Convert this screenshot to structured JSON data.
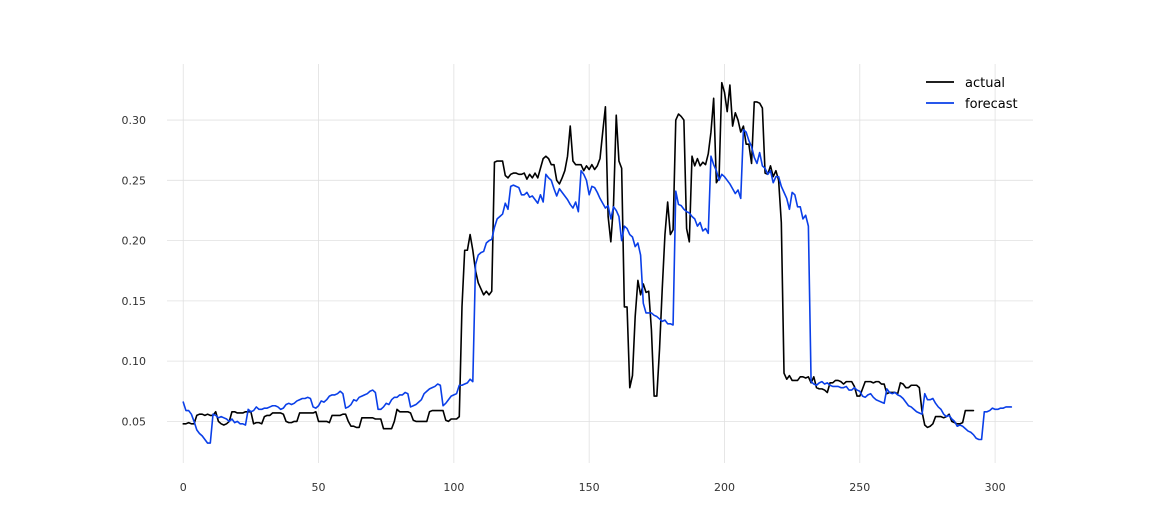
{
  "chart_data": {
    "type": "line",
    "title": "",
    "xlabel": "",
    "ylabel": "",
    "xlim": [
      -6,
      314
    ],
    "ylim": [
      0.0155,
      0.3465
    ],
    "x_ticks": [
      0,
      50,
      100,
      150,
      200,
      250,
      300
    ],
    "y_ticks": [
      0.05,
      0.1,
      0.15,
      0.2,
      0.25,
      0.3
    ],
    "grid": true,
    "legend_position": "top-right",
    "series": [
      {
        "name": "actual",
        "color": "#000000",
        "x_start": 0,
        "values": [
          0.048,
          0.048,
          0.049,
          0.048,
          0.048,
          0.055,
          0.056,
          0.056,
          0.055,
          0.056,
          0.055,
          0.055,
          0.058,
          0.05,
          0.048,
          0.047,
          0.048,
          0.05,
          0.058,
          0.058,
          0.057,
          0.057,
          0.057,
          0.058,
          0.058,
          0.058,
          0.048,
          0.049,
          0.049,
          0.048,
          0.054,
          0.055,
          0.055,
          0.057,
          0.057,
          0.057,
          0.057,
          0.056,
          0.05,
          0.049,
          0.049,
          0.05,
          0.05,
          0.057,
          0.057,
          0.057,
          0.057,
          0.057,
          0.057,
          0.058,
          0.05,
          0.05,
          0.05,
          0.05,
          0.049,
          0.055,
          0.055,
          0.055,
          0.055,
          0.056,
          0.056,
          0.05,
          0.046,
          0.046,
          0.045,
          0.045,
          0.053,
          0.053,
          0.053,
          0.053,
          0.053,
          0.052,
          0.052,
          0.052,
          0.044,
          0.044,
          0.044,
          0.044,
          0.05,
          0.06,
          0.058,
          0.058,
          0.058,
          0.058,
          0.057,
          0.051,
          0.05,
          0.05,
          0.05,
          0.05,
          0.05,
          0.058,
          0.059,
          0.059,
          0.059,
          0.059,
          0.059,
          0.051,
          0.05,
          0.052,
          0.052,
          0.052,
          0.054,
          0.145,
          0.192,
          0.192,
          0.205,
          0.192,
          0.175,
          0.165,
          0.16,
          0.155,
          0.158,
          0.155,
          0.158,
          0.265,
          0.266,
          0.266,
          0.266,
          0.254,
          0.252,
          0.255,
          0.256,
          0.256,
          0.255,
          0.255,
          0.256,
          0.251,
          0.255,
          0.252,
          0.256,
          0.252,
          0.26,
          0.268,
          0.27,
          0.268,
          0.263,
          0.263,
          0.25,
          0.247,
          0.252,
          0.258,
          0.27,
          0.295,
          0.266,
          0.263,
          0.263,
          0.263,
          0.258,
          0.262,
          0.259,
          0.263,
          0.259,
          0.262,
          0.268,
          0.29,
          0.311,
          0.22,
          0.199,
          0.23,
          0.304,
          0.266,
          0.26,
          0.145,
          0.145,
          0.078,
          0.088,
          0.137,
          0.167,
          0.155,
          0.164,
          0.157,
          0.158,
          0.126,
          0.071,
          0.071,
          0.11,
          0.16,
          0.205,
          0.232,
          0.205,
          0.209,
          0.3,
          0.305,
          0.303,
          0.3,
          0.21,
          0.199,
          0.27,
          0.262,
          0.268,
          0.262,
          0.265,
          0.263,
          0.272,
          0.29,
          0.318,
          0.248,
          0.252,
          0.331,
          0.323,
          0.307,
          0.329,
          0.295,
          0.306,
          0.3,
          0.29,
          0.295,
          0.28,
          0.28,
          0.264,
          0.315,
          0.315,
          0.314,
          0.31,
          0.256,
          0.255,
          0.262,
          0.253,
          0.258,
          0.25,
          0.215,
          0.09,
          0.085,
          0.088,
          0.084,
          0.084,
          0.084,
          0.087,
          0.087,
          0.086,
          0.087,
          0.082,
          0.087,
          0.078,
          0.077,
          0.077,
          0.076,
          0.074,
          0.082,
          0.082,
          0.084,
          0.084,
          0.083,
          0.081,
          0.083,
          0.083,
          0.083,
          0.079,
          0.071,
          0.071,
          0.077,
          0.083,
          0.083,
          0.083,
          0.082,
          0.083,
          0.083,
          0.081,
          0.081,
          0.073,
          0.074,
          0.074,
          0.074,
          0.073,
          0.082,
          0.081,
          0.078,
          0.078,
          0.08,
          0.08,
          0.08,
          0.078,
          0.058,
          0.047,
          0.045,
          0.046,
          0.048,
          0.054,
          0.054,
          0.054,
          0.053,
          0.054,
          0.056,
          0.05,
          0.049,
          0.048,
          0.048,
          0.049,
          0.059,
          0.059,
          0.059,
          0.059
        ]
      },
      {
        "name": "forecast",
        "color": "#0a3fe8",
        "x_start": 0,
        "values": [
          0.066,
          0.059,
          0.059,
          0.056,
          0.05,
          0.043,
          0.04,
          0.038,
          0.035,
          0.032,
          0.032,
          0.056,
          0.055,
          0.053,
          0.054,
          0.053,
          0.052,
          0.05,
          0.052,
          0.049,
          0.05,
          0.048,
          0.048,
          0.047,
          0.06,
          0.058,
          0.059,
          0.062,
          0.06,
          0.06,
          0.061,
          0.061,
          0.062,
          0.063,
          0.063,
          0.062,
          0.06,
          0.061,
          0.064,
          0.065,
          0.064,
          0.065,
          0.067,
          0.068,
          0.069,
          0.069,
          0.07,
          0.069,
          0.062,
          0.061,
          0.063,
          0.067,
          0.066,
          0.068,
          0.071,
          0.072,
          0.072,
          0.073,
          0.075,
          0.073,
          0.061,
          0.062,
          0.064,
          0.068,
          0.067,
          0.07,
          0.071,
          0.072,
          0.073,
          0.075,
          0.076,
          0.074,
          0.06,
          0.06,
          0.062,
          0.065,
          0.064,
          0.068,
          0.07,
          0.07,
          0.072,
          0.072,
          0.074,
          0.073,
          0.062,
          0.063,
          0.064,
          0.066,
          0.068,
          0.073,
          0.075,
          0.077,
          0.078,
          0.079,
          0.081,
          0.08,
          0.063,
          0.065,
          0.068,
          0.071,
          0.072,
          0.073,
          0.08,
          0.08,
          0.081,
          0.082,
          0.085,
          0.083,
          0.18,
          0.188,
          0.19,
          0.191,
          0.198,
          0.2,
          0.201,
          0.211,
          0.218,
          0.22,
          0.222,
          0.231,
          0.226,
          0.245,
          0.246,
          0.245,
          0.244,
          0.238,
          0.238,
          0.24,
          0.236,
          0.237,
          0.234,
          0.231,
          0.238,
          0.232,
          0.255,
          0.252,
          0.25,
          0.243,
          0.237,
          0.243,
          0.24,
          0.237,
          0.234,
          0.23,
          0.227,
          0.232,
          0.224,
          0.258,
          0.255,
          0.25,
          0.238,
          0.245,
          0.244,
          0.24,
          0.235,
          0.231,
          0.227,
          0.229,
          0.218,
          0.228,
          0.225,
          0.22,
          0.2,
          0.212,
          0.21,
          0.205,
          0.203,
          0.195,
          0.198,
          0.188,
          0.148,
          0.14,
          0.14,
          0.14,
          0.138,
          0.137,
          0.135,
          0.133,
          0.134,
          0.131,
          0.131,
          0.13,
          0.241,
          0.23,
          0.229,
          0.226,
          0.224,
          0.223,
          0.22,
          0.218,
          0.212,
          0.215,
          0.208,
          0.21,
          0.206,
          0.27,
          0.263,
          0.258,
          0.25,
          0.255,
          0.253,
          0.25,
          0.247,
          0.243,
          0.239,
          0.242,
          0.235,
          0.292,
          0.29,
          0.283,
          0.278,
          0.269,
          0.264,
          0.273,
          0.262,
          0.26,
          0.255,
          0.258,
          0.248,
          0.253,
          0.253,
          0.245,
          0.24,
          0.235,
          0.226,
          0.24,
          0.238,
          0.228,
          0.228,
          0.218,
          0.221,
          0.212,
          0.083,
          0.081,
          0.08,
          0.082,
          0.083,
          0.081,
          0.082,
          0.08,
          0.079,
          0.079,
          0.079,
          0.078,
          0.078,
          0.079,
          0.076,
          0.076,
          0.078,
          0.076,
          0.075,
          0.071,
          0.07,
          0.072,
          0.073,
          0.07,
          0.068,
          0.067,
          0.066,
          0.065,
          0.077,
          0.074,
          0.073,
          0.074,
          0.072,
          0.071,
          0.069,
          0.066,
          0.063,
          0.062,
          0.06,
          0.058,
          0.057,
          0.056,
          0.073,
          0.068,
          0.068,
          0.069,
          0.065,
          0.062,
          0.06,
          0.056,
          0.054,
          0.055,
          0.052,
          0.05,
          0.046,
          0.047,
          0.046,
          0.044,
          0.042,
          0.041,
          0.039,
          0.036,
          0.035,
          0.035,
          0.058,
          0.058,
          0.059,
          0.061,
          0.06,
          0.06,
          0.061,
          0.061,
          0.062,
          0.062,
          0.062
        ]
      }
    ]
  }
}
